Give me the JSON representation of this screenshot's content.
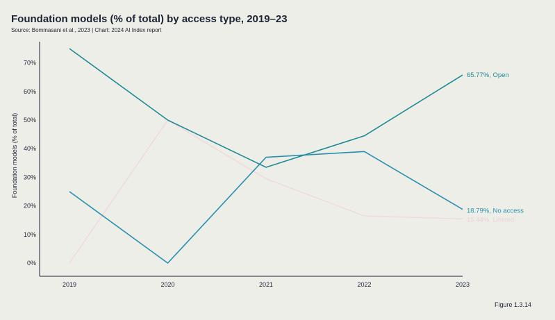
{
  "header": {
    "title": "Foundation models (% of total) by access type, 2019–23",
    "subtitle": "Source: Bommasani et al., 2023 | Chart: 2024 AI Index report"
  },
  "footer": {
    "figure_label": "Figure 1.3.14"
  },
  "chart_data": {
    "type": "line",
    "x": [
      "2019",
      "2020",
      "2021",
      "2022",
      "2023"
    ],
    "ylabel": "Foundation models (% of total)",
    "ylim": [
      0,
      75
    ],
    "yticks": [
      "0%",
      "10%",
      "20%",
      "30%",
      "40%",
      "50%",
      "60%",
      "70%"
    ],
    "grid": false,
    "series": [
      {
        "name": "Open",
        "end_label": "65.77%, Open",
        "color": "#1f8a94",
        "values": [
          75,
          50,
          33.5,
          44.5,
          65.77
        ]
      },
      {
        "name": "No access",
        "end_label": "18.79%, No access",
        "color": "#2a8fae",
        "values": [
          25,
          0,
          37,
          39,
          18.79
        ]
      },
      {
        "name": "Limited",
        "end_label": "15.44%, Limited",
        "color": "#f0d6dd",
        "values": [
          0,
          50,
          29.5,
          16.5,
          15.44
        ]
      }
    ]
  }
}
